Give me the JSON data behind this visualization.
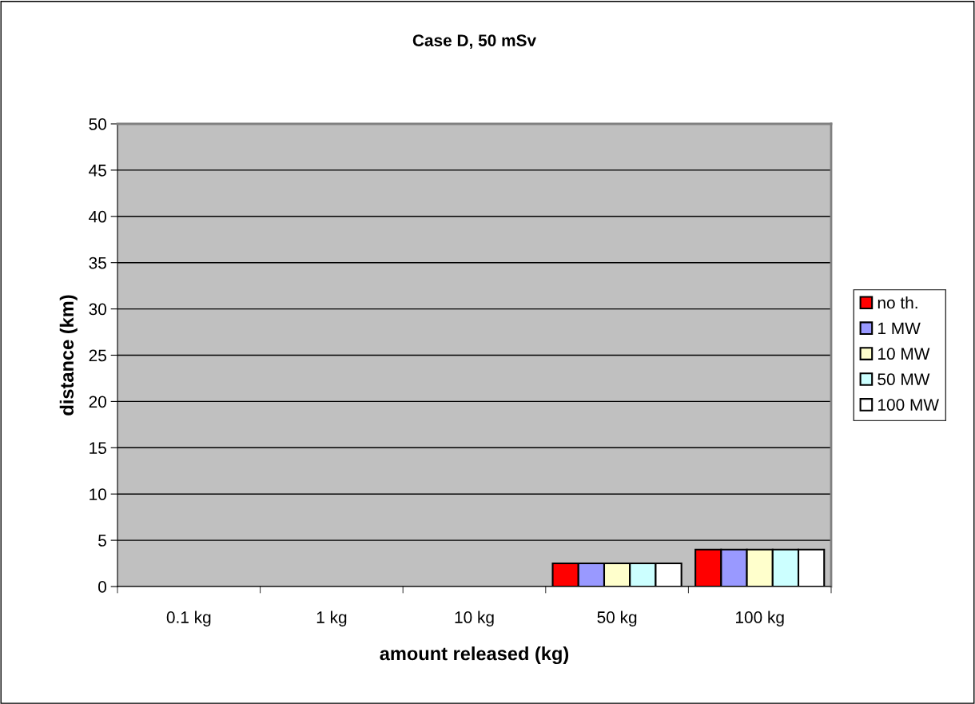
{
  "chart_data": {
    "type": "bar",
    "title": "Case D, 50 mSv",
    "xlabel": "amount released (kg)",
    "ylabel": "distance (km)",
    "categories": [
      "0.1 kg",
      "1 kg",
      "10 kg",
      "50 kg",
      "100 kg"
    ],
    "series": [
      {
        "name": "no th.",
        "color": "#ff0000",
        "values": [
          0,
          0,
          0,
          2.5,
          4
        ]
      },
      {
        "name": "1 MW",
        "color": "#9999ff",
        "values": [
          0,
          0,
          0,
          2.5,
          4
        ]
      },
      {
        "name": "10 MW",
        "color": "#ffffcc",
        "values": [
          0,
          0,
          0,
          2.5,
          4
        ]
      },
      {
        "name": "50 MW",
        "color": "#ccffff",
        "values": [
          0,
          0,
          0,
          2.5,
          4
        ]
      },
      {
        "name": "100 MW",
        "color": "#ffffff",
        "values": [
          0,
          0,
          0,
          2.5,
          4
        ]
      }
    ],
    "ylim": [
      0,
      50
    ],
    "yticks": [
      0,
      5,
      10,
      15,
      20,
      25,
      30,
      35,
      40,
      45,
      50
    ],
    "grid": "y",
    "legend": "right"
  }
}
